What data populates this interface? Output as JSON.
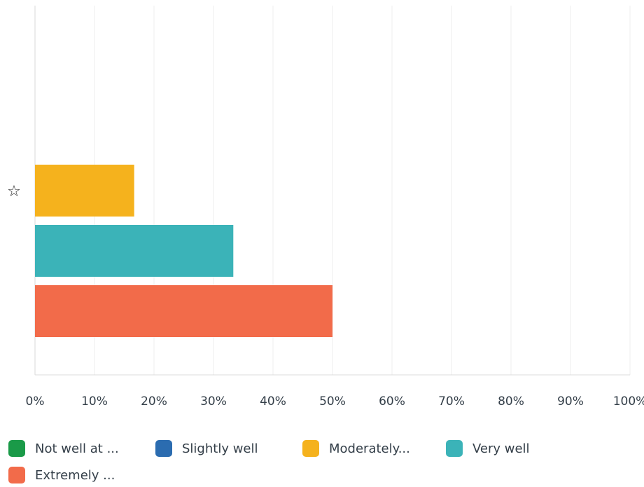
{
  "chart_data": {
    "type": "bar",
    "orientation": "horizontal",
    "categories": [
      "☆"
    ],
    "series": [
      {
        "name": "Not well at ...",
        "values": [
          0
        ],
        "color": "#1a9a48"
      },
      {
        "name": "Slightly well",
        "values": [
          0
        ],
        "color": "#2b6cb0"
      },
      {
        "name": "Moderately...",
        "values": [
          16.67
        ],
        "color": "#f5b21d"
      },
      {
        "name": "Very well",
        "values": [
          33.33
        ],
        "color": "#3bb3b8"
      },
      {
        "name": "Extremely ...",
        "values": [
          50
        ],
        "color": "#f26b4a"
      }
    ],
    "xlim": [
      0,
      100
    ],
    "x_ticks": [
      "0%",
      "10%",
      "20%",
      "30%",
      "40%",
      "50%",
      "60%",
      "70%",
      "80%",
      "90%",
      "100%"
    ],
    "grid": true,
    "legend_position": "bottom",
    "title": "",
    "xlabel": "",
    "ylabel": ""
  }
}
